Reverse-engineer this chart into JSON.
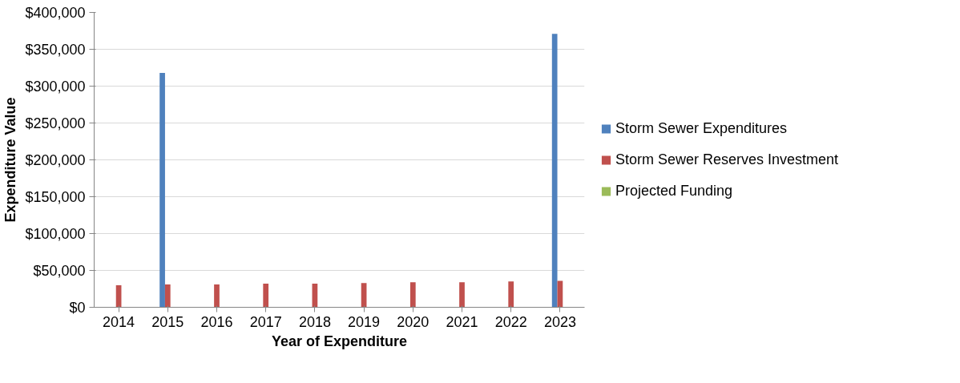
{
  "chart_data": {
    "type": "bar",
    "xlabel": "Year of Expenditure",
    "ylabel": "Expenditure Value",
    "categories": [
      "2014",
      "2015",
      "2016",
      "2017",
      "2018",
      "2019",
      "2020",
      "2021",
      "2022",
      "2023"
    ],
    "series": [
      {
        "name": "Storm Sewer Expenditures",
        "color": "#4f81bd",
        "values": [
          null,
          318000,
          null,
          null,
          null,
          null,
          null,
          null,
          null,
          371000
        ]
      },
      {
        "name": "Storm Sewer Reserves Investment",
        "color": "#c0504d",
        "values": [
          30000,
          31000,
          31000,
          32000,
          32000,
          33000,
          34000,
          34000,
          35000,
          36000
        ]
      },
      {
        "name": "Projected Funding",
        "color": "#9bbb59",
        "values": [
          0,
          0,
          0,
          0,
          0,
          0,
          0,
          0,
          0,
          0
        ]
      }
    ],
    "ylim": [
      0,
      400000
    ],
    "yticks": [
      {
        "value": 0,
        "label": "$0"
      },
      {
        "value": 50000,
        "label": "$50,000"
      },
      {
        "value": 100000,
        "label": "$100,000"
      },
      {
        "value": 150000,
        "label": "$150,000"
      },
      {
        "value": 200000,
        "label": "$200,000"
      },
      {
        "value": 250000,
        "label": "$250,000"
      },
      {
        "value": 300000,
        "label": "$300,000"
      },
      {
        "value": 350000,
        "label": "$350,000"
      },
      {
        "value": 400000,
        "label": "$400,000"
      }
    ],
    "grid": "y",
    "legend": "right"
  }
}
